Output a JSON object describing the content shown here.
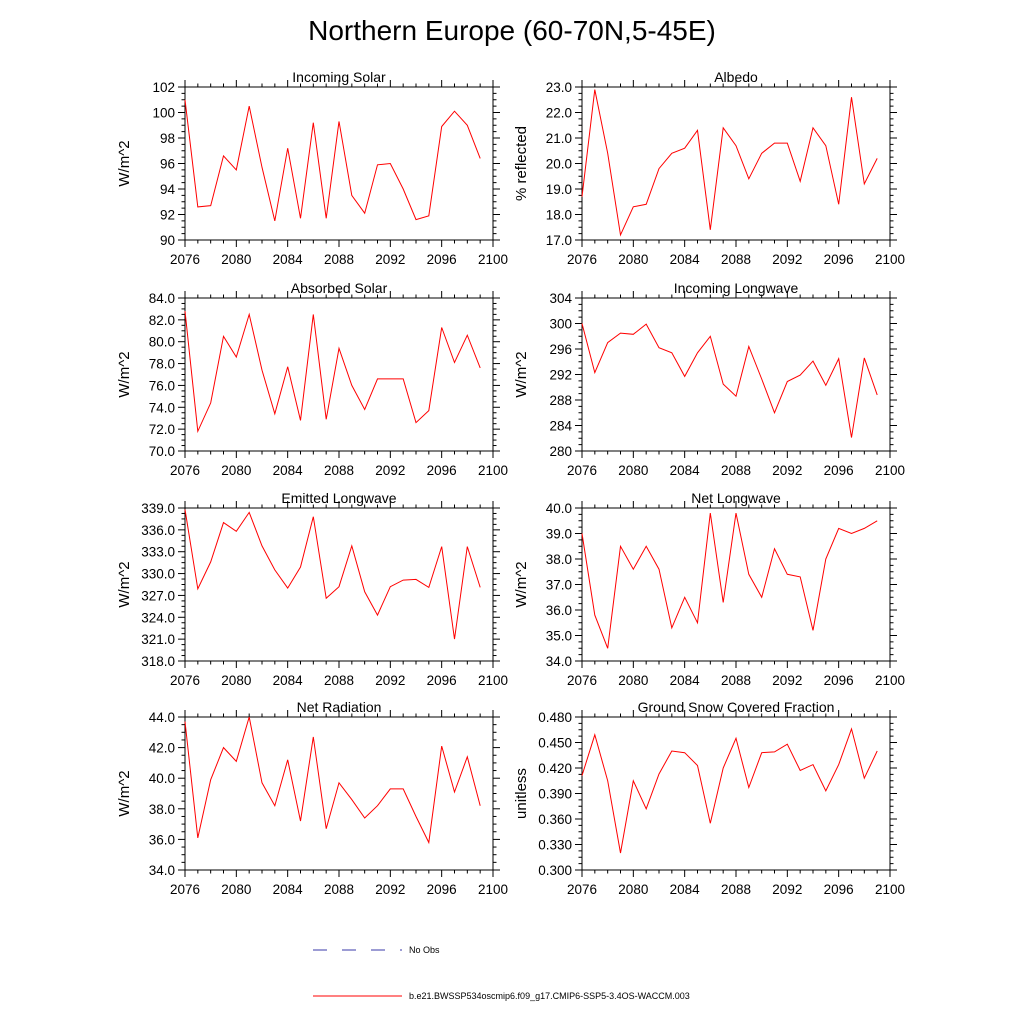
{
  "figure": {
    "title": "Northern Europe (60-70N,5-45E)"
  },
  "legend": [
    {
      "label": "No Obs",
      "color": "#3a3aa8",
      "style": "dashed"
    },
    {
      "label": "b.e21.BWSSP534oscmip6.f09_g17.CMIP6-SSP5-3.4OS-WACCM.003",
      "color": "#ff0000",
      "style": "solid"
    }
  ],
  "chart_data": [
    {
      "type": "line",
      "title": "Incoming Solar",
      "ylabel": "W/m^2",
      "xlabel": "",
      "xlim": [
        2076,
        2100
      ],
      "ylim": [
        90,
        102
      ],
      "yticks": [
        "90",
        "92",
        "94",
        "96",
        "98",
        "100",
        "102"
      ],
      "xticks": [
        "2076",
        "2080",
        "2084",
        "2088",
        "2092",
        "2096",
        "2100"
      ],
      "series": [
        {
          "name": "b.e21.BWSSP534oscmip6.f09_g17.CMIP6-SSP5-3.4OS-WACCM.003",
          "color": "#ff0000",
          "x": [
            2076,
            2077,
            2078,
            2079,
            2080,
            2081,
            2082,
            2083,
            2084,
            2085,
            2086,
            2087,
            2088,
            2089,
            2090,
            2091,
            2092,
            2093,
            2094,
            2095,
            2096,
            2097,
            2098,
            2099
          ],
          "values": [
            101.0,
            92.6,
            92.7,
            96.6,
            95.5,
            100.5,
            95.7,
            91.5,
            97.2,
            91.7,
            99.2,
            91.7,
            99.3,
            93.5,
            92.1,
            95.9,
            96.0,
            94.0,
            91.6,
            91.9,
            98.9,
            100.1,
            99.0,
            96.4
          ]
        }
      ]
    },
    {
      "type": "line",
      "title": "Albedo",
      "ylabel": "% reflected",
      "xlabel": "",
      "xlim": [
        2076,
        2100
      ],
      "ylim": [
        17.0,
        23.0
      ],
      "yticks": [
        "17.0",
        "18.0",
        "19.0",
        "20.0",
        "21.0",
        "22.0",
        "23.0"
      ],
      "xticks": [
        "2076",
        "2080",
        "2084",
        "2088",
        "2092",
        "2096",
        "2100"
      ],
      "series": [
        {
          "name": "b.e21.BWSSP534oscmip6.f09_g17.CMIP6-SSP5-3.4OS-WACCM.003",
          "color": "#ff0000",
          "x": [
            2076,
            2077,
            2078,
            2079,
            2080,
            2081,
            2082,
            2083,
            2084,
            2085,
            2086,
            2087,
            2088,
            2089,
            2090,
            2091,
            2092,
            2093,
            2094,
            2095,
            2096,
            2097,
            2098,
            2099
          ],
          "values": [
            18.7,
            22.9,
            20.4,
            17.2,
            18.3,
            18.4,
            19.8,
            20.4,
            20.6,
            21.3,
            17.4,
            21.4,
            20.7,
            19.4,
            20.4,
            20.8,
            20.8,
            19.3,
            21.4,
            20.7,
            18.4,
            22.6,
            19.2,
            20.2
          ]
        }
      ]
    },
    {
      "type": "line",
      "title": "Absorbed Solar",
      "ylabel": "W/m^2",
      "xlabel": "",
      "xlim": [
        2076,
        2100
      ],
      "ylim": [
        70.0,
        84.0
      ],
      "yticks": [
        "70.0",
        "72.0",
        "74.0",
        "76.0",
        "78.0",
        "80.0",
        "82.0",
        "84.0"
      ],
      "xticks": [
        "2076",
        "2080",
        "2084",
        "2088",
        "2092",
        "2096",
        "2100"
      ],
      "series": [
        {
          "name": "b.e21.BWSSP534oscmip6.f09_g17.CMIP6-SSP5-3.4OS-WACCM.003",
          "color": "#ff0000",
          "x": [
            2076,
            2077,
            2078,
            2079,
            2080,
            2081,
            2082,
            2083,
            2084,
            2085,
            2086,
            2087,
            2088,
            2089,
            2090,
            2091,
            2092,
            2093,
            2094,
            2095,
            2096,
            2097,
            2098,
            2099
          ],
          "values": [
            82.8,
            71.8,
            74.4,
            80.5,
            78.6,
            82.5,
            77.4,
            73.4,
            77.7,
            72.8,
            82.5,
            72.9,
            79.4,
            76.0,
            73.8,
            76.6,
            76.6,
            76.6,
            72.6,
            73.7,
            81.3,
            78.1,
            80.6,
            77.6
          ]
        }
      ]
    },
    {
      "type": "line",
      "title": "Incoming Longwave",
      "ylabel": "W/m^2",
      "xlabel": "",
      "xlim": [
        2076,
        2100
      ],
      "ylim": [
        280,
        304
      ],
      "yticks": [
        "280",
        "284",
        "288",
        "292",
        "296",
        "300",
        "304"
      ],
      "xticks": [
        "2076",
        "2080",
        "2084",
        "2088",
        "2092",
        "2096",
        "2100"
      ],
      "series": [
        {
          "name": "b.e21.BWSSP534oscmip6.f09_g17.CMIP6-SSP5-3.4OS-WACCM.003",
          "color": "#ff0000",
          "x": [
            2076,
            2077,
            2078,
            2079,
            2080,
            2081,
            2082,
            2083,
            2084,
            2085,
            2086,
            2087,
            2088,
            2089,
            2090,
            2091,
            2092,
            2093,
            2094,
            2095,
            2096,
            2097,
            2098,
            2099
          ],
          "values": [
            300.0,
            292.3,
            297.0,
            298.5,
            298.3,
            299.9,
            296.2,
            295.4,
            291.7,
            295.4,
            298.0,
            290.5,
            288.6,
            296.4,
            291.3,
            286.0,
            290.9,
            291.9,
            294.1,
            290.3,
            294.5,
            282.1,
            294.6,
            288.8
          ]
        }
      ]
    },
    {
      "type": "line",
      "title": "Emitted Longwave",
      "ylabel": "W/m^2",
      "xlabel": "",
      "xlim": [
        2076,
        2100
      ],
      "ylim": [
        318.0,
        339.0
      ],
      "yticks": [
        "318.0",
        "321.0",
        "324.0",
        "327.0",
        "330.0",
        "333.0",
        "336.0",
        "339.0"
      ],
      "xticks": [
        "2076",
        "2080",
        "2084",
        "2088",
        "2092",
        "2096",
        "2100"
      ],
      "series": [
        {
          "name": "b.e21.BWSSP534oscmip6.f09_g17.CMIP6-SSP5-3.4OS-WACCM.003",
          "color": "#ff0000",
          "x": [
            2076,
            2077,
            2078,
            2079,
            2080,
            2081,
            2082,
            2083,
            2084,
            2085,
            2086,
            2087,
            2088,
            2089,
            2090,
            2091,
            2092,
            2093,
            2094,
            2095,
            2096,
            2097,
            2098,
            2099
          ],
          "values": [
            338.8,
            327.9,
            331.6,
            337.0,
            335.8,
            338.4,
            333.8,
            330.5,
            328.0,
            330.9,
            337.8,
            326.6,
            328.2,
            333.8,
            327.5,
            324.3,
            328.2,
            329.1,
            329.2,
            328.1,
            333.7,
            321.0,
            333.7,
            328.1
          ]
        }
      ]
    },
    {
      "type": "line",
      "title": "Net Longwave",
      "ylabel": "W/m^2",
      "xlabel": "",
      "xlim": [
        2076,
        2100
      ],
      "ylim": [
        34.0,
        40.0
      ],
      "yticks": [
        "34.0",
        "35.0",
        "36.0",
        "37.0",
        "38.0",
        "39.0",
        "40.0"
      ],
      "xticks": [
        "2076",
        "2080",
        "2084",
        "2088",
        "2092",
        "2096",
        "2100"
      ],
      "series": [
        {
          "name": "b.e21.BWSSP534oscmip6.f09_g17.CMIP6-SSP5-3.4OS-WACCM.003",
          "color": "#ff0000",
          "x": [
            2076,
            2077,
            2078,
            2079,
            2080,
            2081,
            2082,
            2083,
            2084,
            2085,
            2086,
            2087,
            2088,
            2089,
            2090,
            2091,
            2092,
            2093,
            2094,
            2095,
            2096,
            2097,
            2098,
            2099
          ],
          "values": [
            39.0,
            35.8,
            34.5,
            38.5,
            37.6,
            38.5,
            37.6,
            35.3,
            36.5,
            35.5,
            39.8,
            36.3,
            39.8,
            37.4,
            36.5,
            38.4,
            37.4,
            37.3,
            35.2,
            38.0,
            39.2,
            39.0,
            39.2,
            39.5
          ]
        }
      ]
    },
    {
      "type": "line",
      "title": "Net Radiation",
      "ylabel": "W/m^2",
      "xlabel": "",
      "xlim": [
        2076,
        2100
      ],
      "ylim": [
        34.0,
        44.0
      ],
      "yticks": [
        "34.0",
        "36.0",
        "38.0",
        "40.0",
        "42.0",
        "44.0"
      ],
      "xticks": [
        "2076",
        "2080",
        "2084",
        "2088",
        "2092",
        "2096",
        "2100"
      ],
      "series": [
        {
          "name": "b.e21.BWSSP534oscmip6.f09_g17.CMIP6-SSP5-3.4OS-WACCM.003",
          "color": "#ff0000",
          "x": [
            2076,
            2077,
            2078,
            2079,
            2080,
            2081,
            2082,
            2083,
            2084,
            2085,
            2086,
            2087,
            2088,
            2089,
            2090,
            2091,
            2092,
            2093,
            2094,
            2095,
            2096,
            2097,
            2098,
            2099
          ],
          "values": [
            43.7,
            36.1,
            39.9,
            42.0,
            41.1,
            44.0,
            39.7,
            38.2,
            41.2,
            37.2,
            42.7,
            36.7,
            39.7,
            38.6,
            37.4,
            38.2,
            39.3,
            39.3,
            37.5,
            35.8,
            42.1,
            39.1,
            41.4,
            38.2
          ]
        }
      ]
    },
    {
      "type": "line",
      "title": "Ground Snow Covered Fraction",
      "ylabel": "unitless",
      "xlabel": "",
      "xlim": [
        2076,
        2100
      ],
      "ylim": [
        0.3,
        0.48
      ],
      "yticks": [
        "0.300",
        "0.330",
        "0.360",
        "0.390",
        "0.420",
        "0.450",
        "0.480"
      ],
      "xticks": [
        "2076",
        "2080",
        "2084",
        "2088",
        "2092",
        "2096",
        "2100"
      ],
      "series": [
        {
          "name": "b.e21.BWSSP534oscmip6.f09_g17.CMIP6-SSP5-3.4OS-WACCM.003",
          "color": "#ff0000",
          "x": [
            2076,
            2077,
            2078,
            2079,
            2080,
            2081,
            2082,
            2083,
            2084,
            2085,
            2086,
            2087,
            2088,
            2089,
            2090,
            2091,
            2092,
            2093,
            2094,
            2095,
            2096,
            2097,
            2098,
            2099
          ],
          "values": [
            0.411,
            0.459,
            0.405,
            0.32,
            0.405,
            0.372,
            0.413,
            0.44,
            0.438,
            0.423,
            0.355,
            0.42,
            0.455,
            0.397,
            0.438,
            0.439,
            0.448,
            0.417,
            0.424,
            0.393,
            0.424,
            0.466,
            0.408,
            0.44
          ]
        }
      ]
    }
  ]
}
